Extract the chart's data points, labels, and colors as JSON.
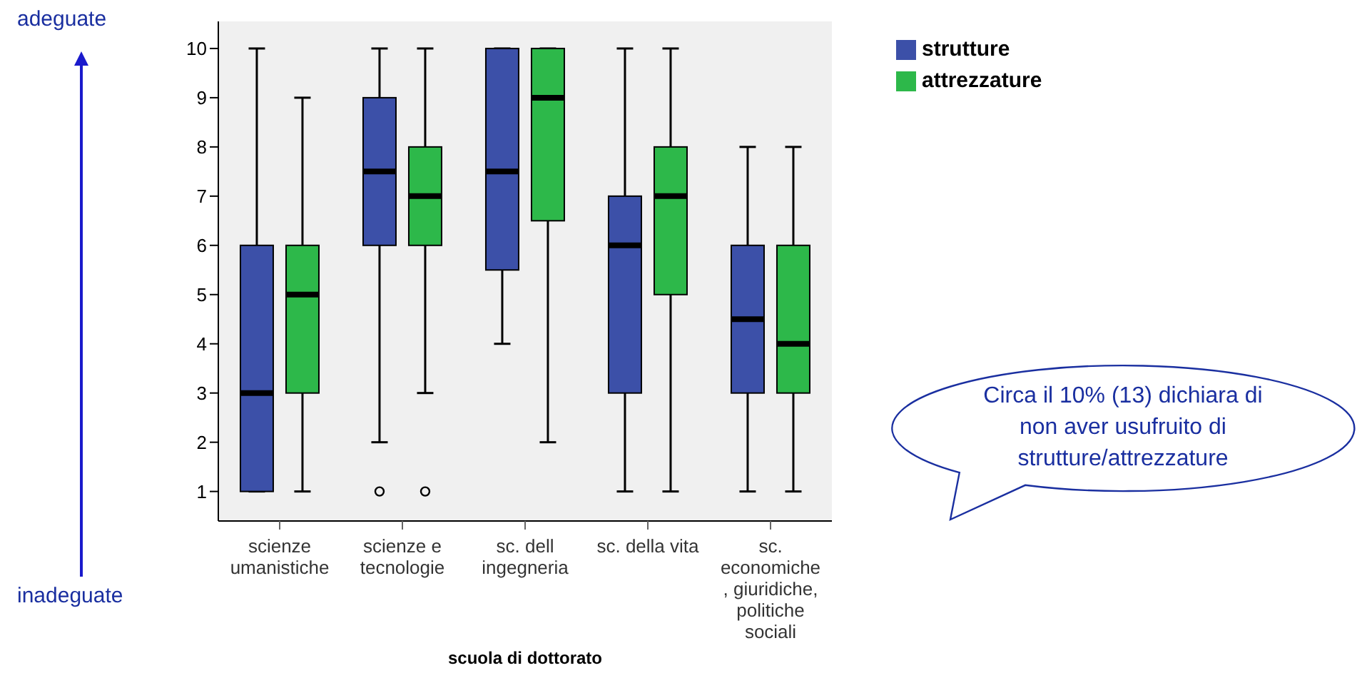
{
  "chart_data": {
    "type": "box",
    "xlabel": "scuola di dottorato",
    "categories": [
      "scienze\numanistiche",
      "scienze e\ntecnologie",
      "sc. dell\ningegneria",
      "sc. della vita",
      "sc.\neconomiche\n, giuridiche,\npolitiche\nsociali"
    ],
    "series": [
      {
        "name": "strutture",
        "color": "#3c50a8",
        "boxes": [
          {
            "low": 1,
            "q1": 1,
            "median": 3,
            "q3": 6,
            "high": 10
          },
          {
            "low": 2,
            "q1": 6,
            "median": 7.5,
            "q3": 9,
            "high": 10,
            "outliers": [
              1
            ]
          },
          {
            "low": 4,
            "q1": 5.5,
            "median": 7.5,
            "q3": 10,
            "high": 10
          },
          {
            "low": 1,
            "q1": 3,
            "median": 6,
            "q3": 7,
            "high": 10
          },
          {
            "low": 1,
            "q1": 3,
            "median": 4.5,
            "q3": 6,
            "high": 8
          }
        ]
      },
      {
        "name": "attrezzature",
        "color": "#2db84a",
        "boxes": [
          {
            "low": 1,
            "q1": 3,
            "median": 5,
            "q3": 6,
            "high": 9
          },
          {
            "low": 3,
            "q1": 6,
            "median": 7,
            "q3": 8,
            "high": 10,
            "outliers": [
              1
            ]
          },
          {
            "low": 2,
            "q1": 6.5,
            "median": 9,
            "q3": 10,
            "high": 10
          },
          {
            "low": 1,
            "q1": 5,
            "median": 7,
            "q3": 8,
            "high": 10
          },
          {
            "low": 1,
            "q1": 3,
            "median": 4,
            "q3": 6,
            "high": 8
          }
        ]
      }
    ],
    "ylim": [
      0.4,
      10.55
    ],
    "yticks": [
      1,
      2,
      3,
      4,
      5,
      6,
      7,
      8,
      9,
      10
    ],
    "legend": "top right",
    "annotations": [
      "adeguate",
      "inadeguate",
      "Circa il 10% (13) dichiara di non aver usufruito di strutture/attrezzature"
    ]
  }
}
